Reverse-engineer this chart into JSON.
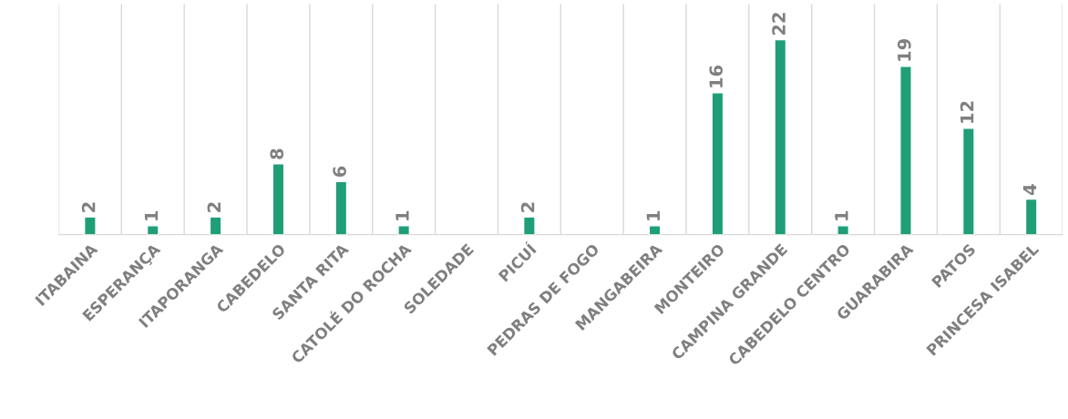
{
  "chart_data": {
    "type": "bar",
    "categories": [
      "ITABAINA",
      "ESPERANÇA",
      "ITAPORANGA",
      "CABEDELO",
      "SANTA RITA",
      "CATOLÉ DO ROCHA",
      "SOLEDADE",
      "PICUÍ",
      "PEDRAS DE FOGO",
      "MANGABEIRA",
      "MONTEIRO",
      "CAMPINA GRANDE",
      "CABEDELO CENTRO",
      "GUARABIRA",
      "PATOS",
      "PRINCESA ISABEL"
    ],
    "values": [
      2,
      1,
      2,
      8,
      6,
      1,
      null,
      2,
      null,
      1,
      16,
      22,
      1,
      19,
      12,
      4
    ],
    "color": "#1f9e78",
    "data_labels": true,
    "ylim": [
      0,
      26
    ],
    "tick_labels": "x",
    "grid": "x",
    "legend": false
  }
}
